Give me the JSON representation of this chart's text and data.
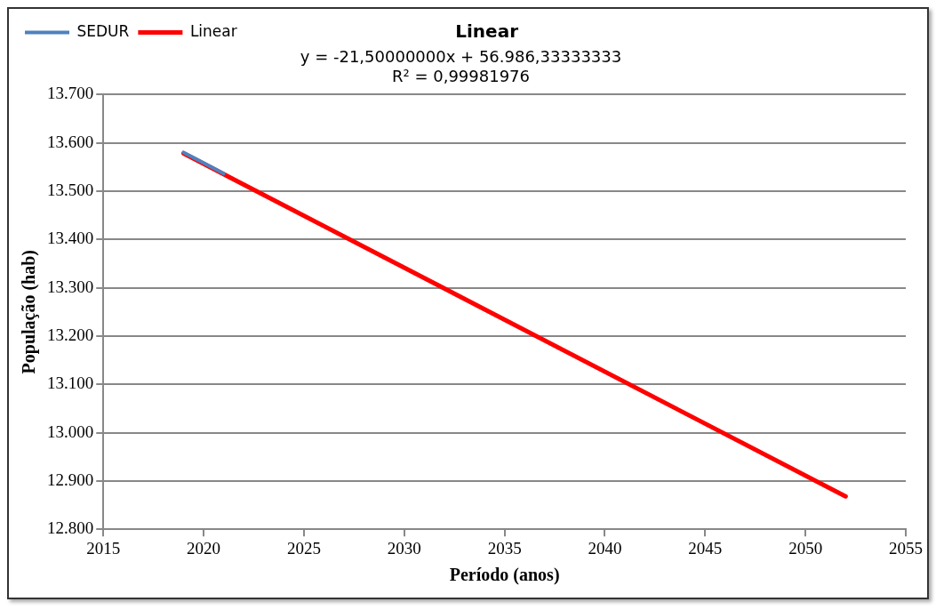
{
  "chart_data": {
    "type": "line",
    "title": "Linear",
    "annotations": [
      "y = -21,50000000x + 56.986,33333333",
      "R² = 0,99981976"
    ],
    "xlabel": "Período (anos)",
    "ylabel": "População (hab)",
    "series": [
      {
        "name": "SEDUR",
        "color": "#4f81bd",
        "x": [
          2019,
          2020,
          2021
        ],
        "values": [
          13580,
          13558,
          13536
        ]
      },
      {
        "name": "Linear",
        "color": "#ff0000",
        "x": [
          2019,
          2052
        ],
        "values": [
          13578,
          12868
        ]
      }
    ],
    "xlim": [
      2015,
      2055
    ],
    "xticks": [
      2015,
      2020,
      2025,
      2030,
      2035,
      2040,
      2045,
      2050,
      2055
    ],
    "ylim": [
      12800,
      13700
    ],
    "yticks": [
      {
        "value": 12800,
        "label": "12.800"
      },
      {
        "value": 12900,
        "label": "12.900"
      },
      {
        "value": 13000,
        "label": "13.000"
      },
      {
        "value": 13100,
        "label": "13.100"
      },
      {
        "value": 13200,
        "label": "13.200"
      },
      {
        "value": 13300,
        "label": "13.300"
      },
      {
        "value": 13400,
        "label": "13.400"
      },
      {
        "value": 13500,
        "label": "13.500"
      },
      {
        "value": 13600,
        "label": "13.600"
      },
      {
        "value": 13700,
        "label": "13.700"
      }
    ],
    "grid": "y",
    "legend": "top left",
    "marker": "none",
    "line_style": "solid"
  }
}
